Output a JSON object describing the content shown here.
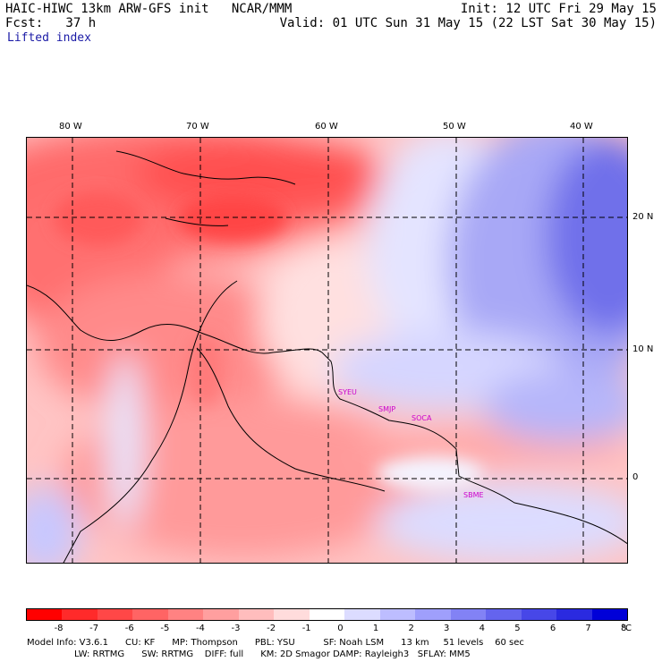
{
  "header": {
    "left_line1": "HAIC-HIWC 13km ARW-GFS init   NCAR/MMM",
    "left_line2": "Fcst:   37 h",
    "right_line1": "Init: 12 UTC Fri 29 May 15",
    "right_line2": "Valid: 01 UTC Sun 31 May 15 (22 LST Sat 30 May 15)",
    "field": "Lifted index"
  },
  "map": {
    "lon_labels": [
      "80 W",
      "70 W",
      "60 W",
      "50 W",
      "40 W"
    ],
    "lat_labels": [
      "20 N",
      "10 N",
      "0"
    ],
    "stations": [
      "SYEU",
      "SMJP",
      "SOCA",
      "SBME"
    ],
    "station_color": "#cc00cc"
  },
  "colorbar": {
    "labels": [
      "-8",
      "-7",
      "-6",
      "-5",
      "-4",
      "-3",
      "-2",
      "-1",
      "0",
      "1",
      "2",
      "3",
      "4",
      "5",
      "6",
      "7",
      "8"
    ],
    "unit": "°C",
    "colors": [
      "#ff0000",
      "#ff2a2a",
      "#ff4747",
      "#ff6464",
      "#ff8282",
      "#ff9f9f",
      "#ffbdbd",
      "#ffdcdc",
      "#ffffff",
      "#dcdcff",
      "#bdbdff",
      "#9f9ffc",
      "#8282f5",
      "#6464ee",
      "#4747e8",
      "#2a2ae0",
      "#0000d8"
    ]
  },
  "footer": {
    "line1": "Model Info: V3.6.1      CU: KF      MP: Thompson      PBL: YSU          SF: Noah LSM      13 km     51 levels    60 sec",
    "line2": "LW: RRTMG      SW: RRTMG    DIFF: full      KM: 2D Smagor DAMP: Rayleigh3   SFLAY: MM5"
  }
}
